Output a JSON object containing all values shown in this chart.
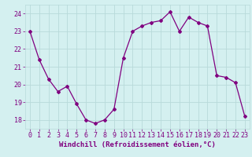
{
  "x": [
    0,
    1,
    2,
    3,
    4,
    5,
    6,
    7,
    8,
    9,
    10,
    11,
    12,
    13,
    14,
    15,
    16,
    17,
    18,
    19,
    20,
    21,
    22,
    23
  ],
  "y": [
    23.0,
    21.4,
    20.3,
    19.6,
    19.9,
    18.9,
    18.0,
    17.8,
    18.0,
    18.6,
    21.5,
    23.0,
    23.3,
    23.5,
    23.6,
    24.1,
    23.0,
    23.8,
    23.5,
    23.3,
    20.5,
    20.4,
    20.1,
    18.2
  ],
  "line_color": "#800080",
  "marker": "D",
  "markersize": 2,
  "linewidth": 0.9,
  "bg_color": "#d4f0f0",
  "grid_color": "#b8dada",
  "tick_color": "#800080",
  "label_color": "#800080",
  "xlabel": "Windchill (Refroidissement éolien,°C)",
  "ylabel": "",
  "xlim": [
    -0.5,
    23.5
  ],
  "ylim": [
    17.5,
    24.5
  ],
  "yticks": [
    18,
    19,
    20,
    21,
    22,
    23,
    24
  ],
  "xticks": [
    0,
    1,
    2,
    3,
    4,
    5,
    6,
    7,
    8,
    9,
    10,
    11,
    12,
    13,
    14,
    15,
    16,
    17,
    18,
    19,
    20,
    21,
    22,
    23
  ],
  "xlabel_fontsize": 6.5,
  "tick_fontsize": 6.0
}
